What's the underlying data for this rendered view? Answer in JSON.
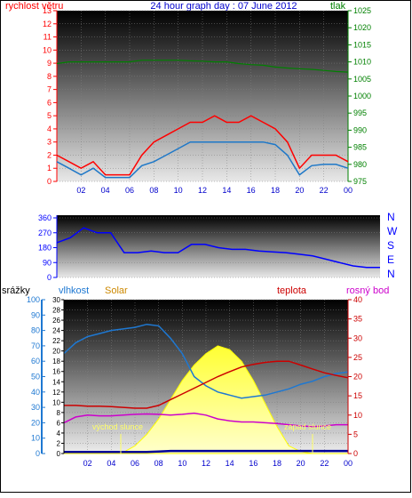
{
  "title": "24 hour graph day : 07 June 2012",
  "colors": {
    "wind": "#ff0000",
    "gust_line": "#1e78c8",
    "pressure": "#008000",
    "direction": "#0000ff",
    "humidity": "#1e78d2",
    "solar": "#ffff66",
    "temperature": "#cc0000",
    "dewpoint": "#cc00cc",
    "rain": "#000099",
    "blue_text": "#0000cc",
    "gold": "#cc8800"
  },
  "x_ticks": [
    "02",
    "04",
    "06",
    "08",
    "10",
    "12",
    "14",
    "16",
    "18",
    "20",
    "22",
    "00"
  ],
  "chart_data": [
    {
      "type": "line",
      "ylabel": "rychlost větru",
      "y2label": "tlak",
      "ylim": [
        0,
        13
      ],
      "y2lim": [
        975,
        1025
      ],
      "yticks": [
        0,
        1,
        2,
        3,
        4,
        5,
        6,
        7,
        8,
        9,
        10,
        11,
        12,
        13
      ],
      "y2ticks": [
        975,
        980,
        985,
        990,
        995,
        1000,
        1005,
        1010,
        1015,
        1020,
        1025
      ],
      "x_hours": [
        0,
        1,
        2,
        3,
        4,
        5,
        6,
        7,
        8,
        9,
        10,
        11,
        12,
        13,
        14,
        15,
        16,
        17,
        18,
        19,
        20,
        21,
        22,
        23,
        24
      ],
      "wind_gust": [
        2,
        1.5,
        1,
        1.5,
        0.5,
        0.5,
        0.5,
        2,
        3,
        3.5,
        4,
        4.5,
        4.5,
        5,
        4.5,
        4.5,
        5,
        4.5,
        4,
        3,
        1,
        2,
        2,
        2,
        1.5
      ],
      "wind_avg": [
        1.5,
        1,
        0.5,
        1,
        0.3,
        0.3,
        0.3,
        1.2,
        1.5,
        2,
        2.5,
        3,
        3,
        3,
        3,
        3,
        3,
        3,
        2.8,
        2,
        0.5,
        1.2,
        1.3,
        1.3,
        1
      ],
      "pressure": [
        1009.5,
        1010,
        1010,
        1010,
        1010,
        1010,
        1010,
        1010.5,
        1010.5,
        1010.5,
        1010.5,
        1010.3,
        1010.2,
        1010,
        1010,
        1009.5,
        1009.2,
        1009,
        1008.5,
        1008.2,
        1008,
        1007.8,
        1007.5,
        1007.2,
        1007
      ]
    },
    {
      "type": "scatter",
      "ylim": [
        0,
        360
      ],
      "yticks": [
        0,
        90,
        180,
        270,
        360
      ],
      "compass_labels": [
        "N",
        "W",
        "S",
        "E",
        "N"
      ],
      "x_hours": [
        0,
        1,
        2,
        3,
        4,
        5,
        6,
        7,
        8,
        9,
        10,
        11,
        12,
        13,
        14,
        15,
        16,
        17,
        18,
        19,
        20,
        21,
        22,
        23,
        24
      ],
      "direction": [
        210,
        240,
        300,
        270,
        270,
        150,
        150,
        160,
        150,
        150,
        200,
        200,
        180,
        170,
        170,
        160,
        155,
        150,
        140,
        130,
        110,
        90,
        70,
        60,
        60
      ]
    },
    {
      "type": "line",
      "labels": {
        "rain": "srážky",
        "humidity": "vlhkost",
        "solar": "Solar",
        "temperature": "teplota",
        "dewpoint": "rosný bod"
      },
      "humidity_lim": [
        0,
        100
      ],
      "humidity_ticks": [
        0,
        10,
        20,
        30,
        40,
        50,
        60,
        70,
        80,
        90,
        100
      ],
      "rain_lim": [
        0,
        30
      ],
      "rain_ticks": [
        0,
        2,
        4,
        6,
        8,
        10,
        12,
        14,
        16,
        18,
        20,
        22,
        24,
        26,
        28,
        30
      ],
      "temp_lim": [
        0,
        40
      ],
      "temp_ticks": [
        0,
        5,
        10,
        15,
        20,
        25,
        30,
        35,
        40
      ],
      "x_hours": [
        0,
        1,
        2,
        3,
        4,
        5,
        6,
        7,
        8,
        9,
        10,
        11,
        12,
        13,
        14,
        15,
        16,
        17,
        18,
        19,
        20,
        21,
        22,
        23,
        24
      ],
      "humidity": [
        65,
        72,
        76,
        78,
        80,
        81,
        82,
        84,
        83,
        75,
        65,
        50,
        44,
        40,
        38,
        36,
        37,
        38,
        40,
        42,
        45,
        47,
        50,
        52,
        53
      ],
      "solar": [
        0,
        0,
        0,
        0,
        0,
        0.3,
        2,
        5,
        9,
        14,
        19,
        23,
        26,
        28,
        27,
        24,
        19,
        13,
        7,
        2,
        0.5,
        0,
        0,
        0,
        0
      ],
      "temperature": [
        12.5,
        12.5,
        12.3,
        12.3,
        12.2,
        12,
        11.8,
        11.8,
        12.5,
        14,
        15.5,
        17,
        18.5,
        20,
        21.3,
        22.5,
        23.2,
        23.7,
        24,
        24,
        23,
        22,
        21,
        20.3,
        19.7
      ],
      "dewpoint": [
        8,
        9.5,
        10,
        9.8,
        9.8,
        10,
        10.2,
        10.3,
        10.2,
        10,
        10.2,
        10.5,
        10,
        9,
        8.5,
        8.2,
        8.2,
        8,
        7.8,
        7.5,
        7.2,
        7,
        7.2,
        7.5,
        7.5
      ],
      "rain": [
        0.3,
        0.3,
        0.3,
        0.3,
        0.3,
        0.3,
        0.3,
        0.3,
        0.4,
        0.5,
        0.5,
        0.5,
        0.5,
        0.5,
        0.5,
        0.5,
        0.5,
        0.5,
        0.5,
        0.5,
        0.5,
        0.5,
        0.5,
        0.5,
        0.5
      ],
      "annotations": [
        "východ slunce",
        "západ slunce"
      ]
    }
  ]
}
